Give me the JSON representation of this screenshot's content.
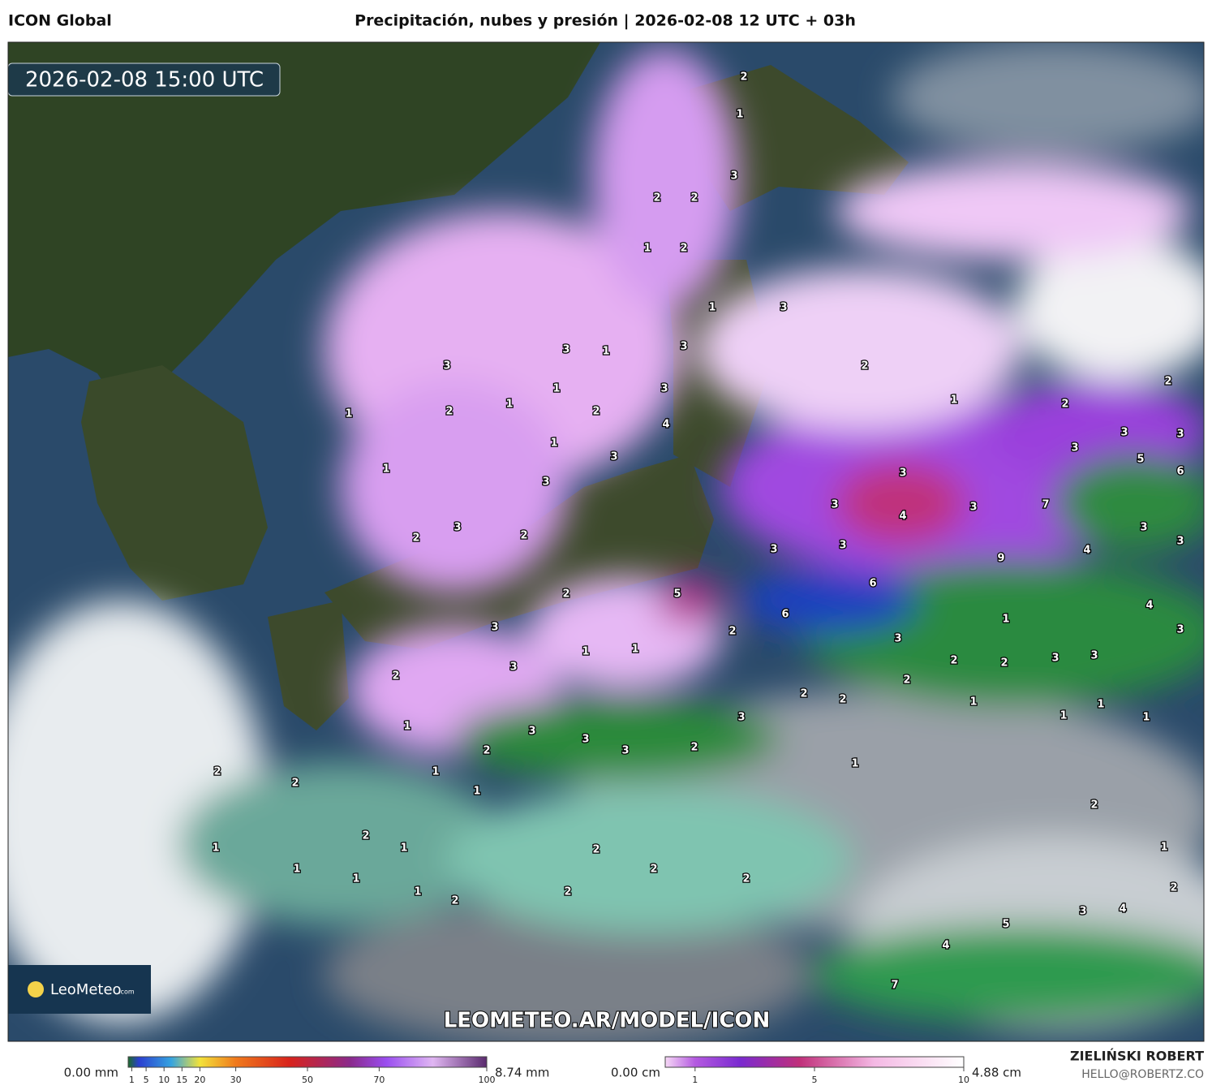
{
  "header": {
    "model": "ICON Global",
    "title": "Precipitación, nubes y presión | 2026-02-08 12 UTC + 03h"
  },
  "map": {
    "timestamp": "2026-02-08 15:00 UTC",
    "watermark": "LEOMETEO.AR/MODEL/ICON",
    "values": [
      2,
      1,
      3,
      2,
      2,
      1,
      2,
      1,
      3,
      3,
      1,
      3,
      3,
      1,
      3,
      1,
      2,
      2,
      1,
      4,
      2,
      1,
      2,
      2,
      1,
      3,
      1,
      3,
      3,
      3,
      4,
      3,
      3,
      3,
      3,
      5,
      6,
      7,
      3,
      2,
      2,
      3,
      3,
      9,
      4,
      3,
      3,
      5,
      6,
      2,
      2,
      6,
      3,
      3,
      1,
      1,
      1,
      4,
      3,
      3,
      2,
      2,
      3,
      3,
      2,
      2,
      2,
      2,
      1,
      1,
      1,
      1,
      3,
      1,
      3,
      3,
      3,
      2,
      2,
      1,
      1,
      2,
      2,
      1,
      2,
      2,
      1,
      1,
      2,
      1,
      1,
      2,
      2,
      1,
      1,
      2,
      2,
      2,
      3,
      4,
      5,
      4,
      7
    ]
  },
  "logo": {
    "name": "LeoMeteo",
    "suffix": ".com"
  },
  "legend": {
    "precipitation": {
      "min_label": "0.00 mm",
      "max_label": "8.74 mm",
      "range": [
        0,
        100
      ],
      "ticks": [
        1,
        5,
        10,
        15,
        20,
        30,
        50,
        70,
        100
      ]
    },
    "clouds": {
      "min_label": "0.00 cm",
      "max_label": "4.88 cm",
      "range": [
        0,
        10
      ],
      "ticks": [
        1,
        5,
        10
      ]
    }
  },
  "footer": {
    "author": "ZIELIŃSKI ROBERT",
    "email": "HELLO@ROBERTZ.CO"
  }
}
